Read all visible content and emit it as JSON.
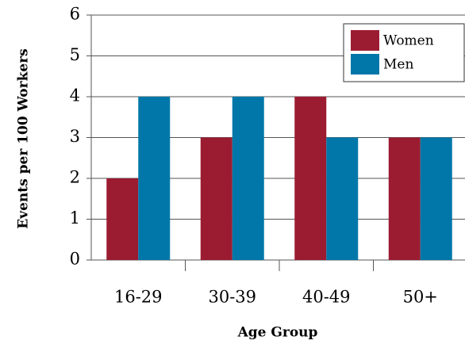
{
  "chart_data": {
    "type": "bar",
    "x_label": "Age Group",
    "y_label": "Events per 100 Workers",
    "categories": [
      "16-29",
      "30-39",
      "40-49",
      "50+"
    ],
    "series": [
      {
        "name": "Women",
        "color": "#9b1c31",
        "values": [
          2,
          3,
          4,
          3
        ]
      },
      {
        "name": "Men",
        "color": "#0077a8",
        "values": [
          4,
          4,
          3,
          3
        ]
      }
    ],
    "ylim": [
      0,
      6
    ],
    "yticks": [
      0,
      1,
      2,
      3,
      4,
      5,
      6
    ],
    "grid": true,
    "legend": "upper right"
  }
}
